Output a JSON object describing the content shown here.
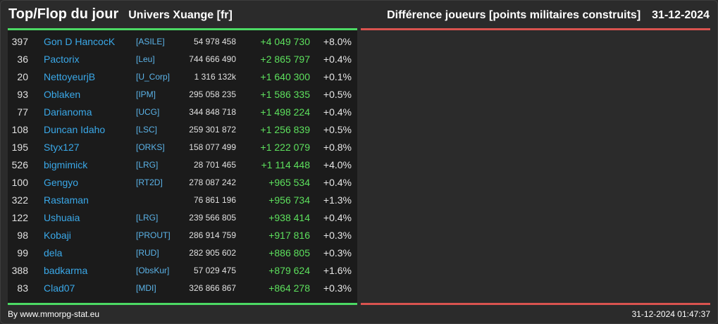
{
  "header": {
    "title": "Top/Flop du jour",
    "universe": "Univers Xuange [fr]",
    "metric": "Différence joueurs [points militaires construits]",
    "date": "31-12-2024"
  },
  "colors": {
    "accent_top": "#4cd964",
    "accent_flop": "#d9534f",
    "name": "#3aa8e8",
    "gain": "#5de05d"
  },
  "top": [
    {
      "rank": "397",
      "name": "Gon D HancocK",
      "alliance": "[ASILE]",
      "points": "54 978 458",
      "diff": "+4 049 730",
      "pct": "+8.0%"
    },
    {
      "rank": "36",
      "name": "Pactorix",
      "alliance": "[Leu]",
      "points": "744 666 490",
      "diff": "+2 865 797",
      "pct": "+0.4%"
    },
    {
      "rank": "20",
      "name": "NettoyeurjB",
      "alliance": "[U_Corp]",
      "points": "1 316 132k",
      "diff": "+1 640 300",
      "pct": "+0.1%"
    },
    {
      "rank": "93",
      "name": "Oblaken",
      "alliance": "[IPM]",
      "points": "295 058 235",
      "diff": "+1 586 335",
      "pct": "+0.5%"
    },
    {
      "rank": "77",
      "name": "Darianoma",
      "alliance": "[UCG]",
      "points": "344 848 718",
      "diff": "+1 498 224",
      "pct": "+0.4%"
    },
    {
      "rank": "108",
      "name": "Duncan Idaho",
      "alliance": "[LSC]",
      "points": "259 301 872",
      "diff": "+1 256 839",
      "pct": "+0.5%"
    },
    {
      "rank": "195",
      "name": "Styx127",
      "alliance": "[ORKS]",
      "points": "158 077 499",
      "diff": "+1 222 079",
      "pct": "+0.8%"
    },
    {
      "rank": "526",
      "name": "bigmimick",
      "alliance": "[LRG]",
      "points": "28 701 465",
      "diff": "+1 114 448",
      "pct": "+4.0%"
    },
    {
      "rank": "100",
      "name": "Gengyo",
      "alliance": "[RT2D]",
      "points": "278 087 242",
      "diff": "+965 534",
      "pct": "+0.4%"
    },
    {
      "rank": "322",
      "name": "Rastaman",
      "alliance": "",
      "points": "76 861 196",
      "diff": "+956 734",
      "pct": "+1.3%"
    },
    {
      "rank": "122",
      "name": "Ushuaia",
      "alliance": "[LRG]",
      "points": "239 566 805",
      "diff": "+938 414",
      "pct": "+0.4%"
    },
    {
      "rank": "98",
      "name": "Kobaji",
      "alliance": "[PROUT]",
      "points": "286 914 759",
      "diff": "+917 816",
      "pct": "+0.3%"
    },
    {
      "rank": "99",
      "name": "dela",
      "alliance": "[RUD]",
      "points": "282 905 602",
      "diff": "+886 805",
      "pct": "+0.3%"
    },
    {
      "rank": "388",
      "name": "badkarma",
      "alliance": "[ObsKur]",
      "points": "57 029 475",
      "diff": "+879 624",
      "pct": "+1.6%"
    },
    {
      "rank": "83",
      "name": "Clad07",
      "alliance": "[MDI]",
      "points": "326 866 867",
      "diff": "+864 278",
      "pct": "+0.3%"
    }
  ],
  "footer": {
    "credit": "By www.mmorpg-stat.eu",
    "timestamp": "31-12-2024 01:47:37"
  }
}
